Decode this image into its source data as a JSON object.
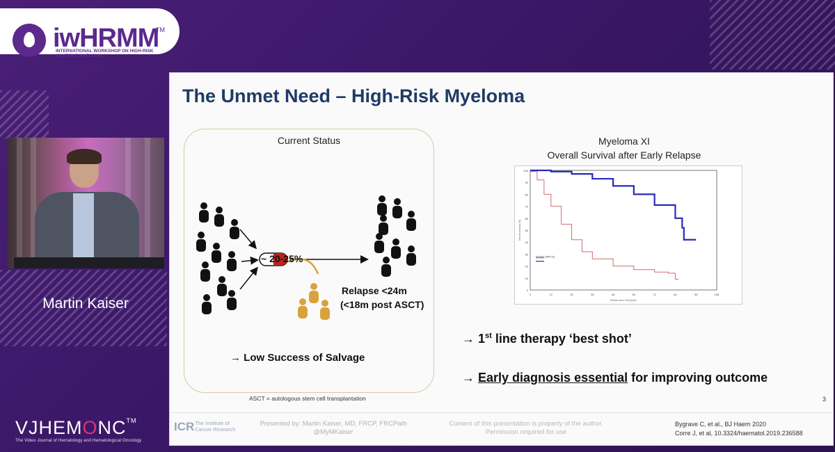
{
  "branding": {
    "logo_text": "iwHRMM",
    "logo_tm": "TM",
    "logo_subtitle": "INTERNATIONAL WORKSHOP ON HIGH-RISK MULTIPLE MYELOMA",
    "vj_text_1": "VJHEM",
    "vj_text_2": "O",
    "vj_text_3": "NC",
    "vj_tm": "TM",
    "vj_subtitle": "The Video Journal of Hematology and Hematological Oncology"
  },
  "speaker": {
    "name": "Martin Kaiser"
  },
  "slide": {
    "title": "The Unmet Need – High-Risk Myeloma",
    "panel_title": "Current Status",
    "percent_label": "~ 20-25%",
    "relapse_line1": "Relapse <24m",
    "relapse_line2": "(<18m post ASCT)",
    "salvage_text": "→ Low Success of Salvage",
    "asct_note": "ASCT = autologous stem cell transplantation",
    "chart_title_line1": "Myeloma XI",
    "chart_title_line2": "Overall Survival after Early Relapse",
    "bullet1_arrow": "→",
    "bullet1_sup": "st",
    "bullet1_ordinal": "1",
    "bullet1_rest": " line therapy ‘best shot’",
    "bullet2_arrow": "→",
    "bullet2_underlined": "Early diagnosis essential",
    "bullet2_rest": " for improving outcome",
    "page_number": "3"
  },
  "footer": {
    "icr_logo": "ICR",
    "icr_name": "The Institute of Cancer Research",
    "presented_by_1": "Presented by: Martin Kaiser, MD, FRCP, FRCPath",
    "presented_by_2": "@MyMKaiser",
    "content_note_1": "Content of this presentation is property of the author.",
    "content_note_2": "Permission required for use",
    "citation_1": "Bygrave C, et al., BJ Haem 2020",
    "citation_2": "Corre J, et al, 10.3324/haematol.2019.236588"
  },
  "colors": {
    "background": "#3a1766",
    "title_navy": "#1f3b66",
    "blue_curve": "#2a2ab8",
    "red_curve": "#d06a72",
    "relapse_figures": "#d9a23c"
  },
  "chart_data": {
    "type": "line",
    "title": "",
    "xlabel": "Months since HDA/phen",
    "ylabel": "Overall survival (%)",
    "xlim": [
      0,
      108
    ],
    "ylim": [
      0,
      100
    ],
    "x_ticks": [
      0,
      12,
      24,
      36,
      48,
      60,
      72,
      84,
      96,
      108
    ],
    "y_ticks": [
      0,
      10,
      20,
      30,
      40,
      50,
      60,
      70,
      80,
      90,
      100
    ],
    "legend_title": "Number (95% CI)",
    "legend": "bottom-left",
    "series": [
      {
        "color": "#2a2ab8",
        "x": [
          0,
          12,
          24,
          36,
          48,
          60,
          72,
          84,
          88,
          89,
          96
        ],
        "y": [
          100,
          99,
          97,
          93,
          87,
          80,
          71,
          60,
          52,
          42,
          42
        ]
      },
      {
        "color": "#d06a72",
        "x": [
          0,
          4,
          8,
          12,
          18,
          24,
          30,
          36,
          48,
          60,
          72,
          80,
          84,
          86
        ],
        "y": [
          99,
          92,
          80,
          70,
          55,
          42,
          32,
          26,
          20,
          17,
          15,
          14,
          9,
          9
        ]
      }
    ]
  }
}
